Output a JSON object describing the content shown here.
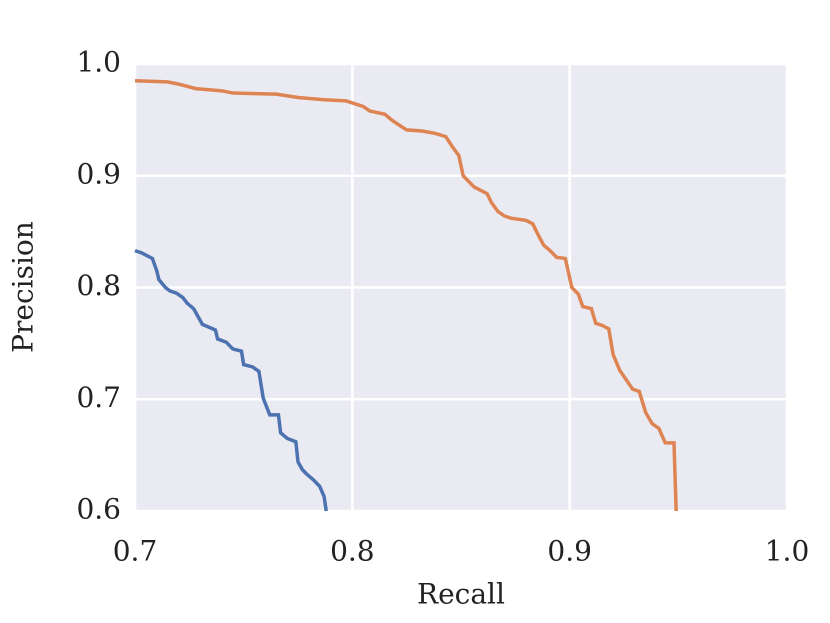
{
  "chart_data": {
    "type": "line",
    "xlabel": "Recall",
    "ylabel": "Precision",
    "xlim": [
      0.7,
      1
    ],
    "ylim": [
      0.6,
      1
    ],
    "xticks": [
      0.7,
      0.8,
      0.9,
      {
        "value": 1,
        "label": "1.0"
      }
    ],
    "yticks": [
      0.6,
      0.7,
      0.8,
      0.9,
      {
        "value": 1,
        "label": "1.0"
      }
    ],
    "grid": true,
    "series": [
      {
        "color": "#4c72b0",
        "x": [
          0.7,
          0.703,
          0.705,
          0.708,
          0.71,
          0.711,
          0.714,
          0.716,
          0.719,
          0.722,
          0.724,
          0.727,
          0.731,
          0.737,
          0.738,
          0.742,
          0.745,
          0.749,
          0.75,
          0.754,
          0.757,
          0.759,
          0.762,
          0.766,
          0.767,
          0.77,
          0.774,
          0.775,
          0.777,
          0.779,
          0.782,
          0.785,
          0.787,
          0.788
        ],
        "values": [
          0.833,
          0.831,
          0.829,
          0.826,
          0.815,
          0.807,
          0.8,
          0.797,
          0.795,
          0.791,
          0.786,
          0.781,
          0.767,
          0.762,
          0.754,
          0.751,
          0.745,
          0.743,
          0.731,
          0.729,
          0.725,
          0.701,
          0.686,
          0.686,
          0.67,
          0.665,
          0.662,
          0.644,
          0.637,
          0.633,
          0.628,
          0.622,
          0.613,
          0.6
        ]
      },
      {
        "color": "#dd8452",
        "x": [
          0.7,
          0.715,
          0.72,
          0.728,
          0.74,
          0.745,
          0.765,
          0.775,
          0.787,
          0.797,
          0.805,
          0.808,
          0.815,
          0.818,
          0.821,
          0.825,
          0.832,
          0.838,
          0.843,
          0.846,
          0.849,
          0.851,
          0.853,
          0.856,
          0.862,
          0.864,
          0.867,
          0.87,
          0.873,
          0.88,
          0.883,
          0.885,
          0.888,
          0.891,
          0.894,
          0.898,
          0.901,
          0.904,
          0.906,
          0.91,
          0.912,
          0.915,
          0.918,
          0.92,
          0.923,
          0.929,
          0.932,
          0.935,
          0.938,
          0.941,
          0.944,
          0.948,
          0.949
        ],
        "values": [
          0.985,
          0.984,
          0.982,
          0.978,
          0.976,
          0.974,
          0.973,
          0.97,
          0.968,
          0.967,
          0.962,
          0.958,
          0.955,
          0.95,
          0.946,
          0.941,
          0.94,
          0.938,
          0.935,
          0.926,
          0.918,
          0.9,
          0.896,
          0.89,
          0.884,
          0.876,
          0.868,
          0.864,
          0.862,
          0.86,
          0.857,
          0.849,
          0.838,
          0.833,
          0.827,
          0.826,
          0.8,
          0.794,
          0.783,
          0.781,
          0.768,
          0.766,
          0.763,
          0.74,
          0.726,
          0.709,
          0.707,
          0.688,
          0.678,
          0.674,
          0.661,
          0.661,
          0.6
        ]
      }
    ]
  }
}
